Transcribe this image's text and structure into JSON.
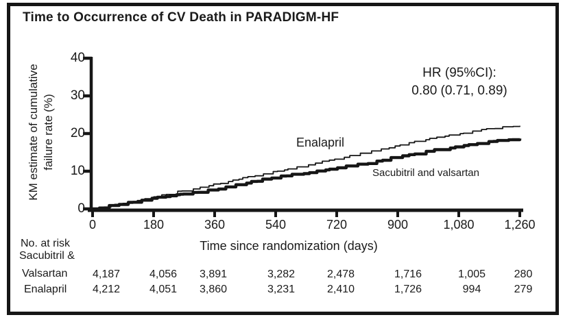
{
  "figure": {
    "title": "Time to Occurrence of CV Death in PARADIGM-HF"
  },
  "chart_data": {
    "type": "line",
    "subtype": "kaplan-meier-step",
    "title": "Time to Occurrence of CV Death in PARADIGM-HF",
    "xlabel": "Time since randomization (days)",
    "ylabel": "KM estimate of cumulative failure rate (%)",
    "ylabel_lines": [
      "KM estimate of cumulative",
      "failure rate (%)"
    ],
    "xlim": [
      0,
      1260
    ],
    "ylim": [
      0,
      40
    ],
    "x_ticks": [
      0,
      180,
      360,
      540,
      720,
      900,
      1080,
      1260
    ],
    "x_tick_labels": [
      "0",
      "180",
      "360",
      "540",
      "720",
      "900",
      "1,080",
      "1,260"
    ],
    "y_ticks": [
      0,
      10,
      20,
      30,
      40
    ],
    "y_tick_labels": [
      "0",
      "10",
      "20",
      "30",
      "40"
    ],
    "grid": false,
    "legend_position": "inline-labels",
    "annotation": {
      "line1": "HR (95%CI):",
      "line2": "0.80 (0.71, 0.89)"
    },
    "series": [
      {
        "name": "Enalapril",
        "style": "thin",
        "x": [
          0,
          90,
          180,
          270,
          360,
          450,
          540,
          630,
          720,
          810,
          900,
          990,
          1080,
          1170,
          1260
        ],
        "values": [
          0,
          1.5,
          3.3,
          4.9,
          6.5,
          8.3,
          10.0,
          11.6,
          13.4,
          15.0,
          16.9,
          18.5,
          20.0,
          21.3,
          22.2
        ]
      },
      {
        "name": "Sacubitril and valsartan",
        "style": "thick",
        "x": [
          0,
          90,
          180,
          270,
          360,
          450,
          540,
          630,
          720,
          810,
          900,
          990,
          1080,
          1170,
          1260
        ],
        "values": [
          0,
          1.4,
          2.8,
          4.0,
          5.2,
          6.8,
          8.5,
          9.6,
          10.9,
          12.1,
          13.9,
          15.3,
          16.7,
          17.8,
          18.7
        ]
      }
    ],
    "risk_table": {
      "header": "No. at risk",
      "rows": [
        {
          "label_lines": [
            "Sacubitril &",
            "Valsartan"
          ],
          "values": [
            "4,187",
            "4,056",
            "3,891",
            "3,282",
            "2,478",
            "1,716",
            "1,005",
            "280"
          ]
        },
        {
          "label_lines": [
            "Enalapril"
          ],
          "values": [
            "4,212",
            "4,051",
            "3,860",
            "3,231",
            "2,410",
            "1,726",
            "994",
            "279"
          ]
        }
      ]
    },
    "colors": {
      "line": "#161616",
      "text": "#1a1a1a",
      "border": "#161616",
      "background": "#ffffff"
    }
  }
}
